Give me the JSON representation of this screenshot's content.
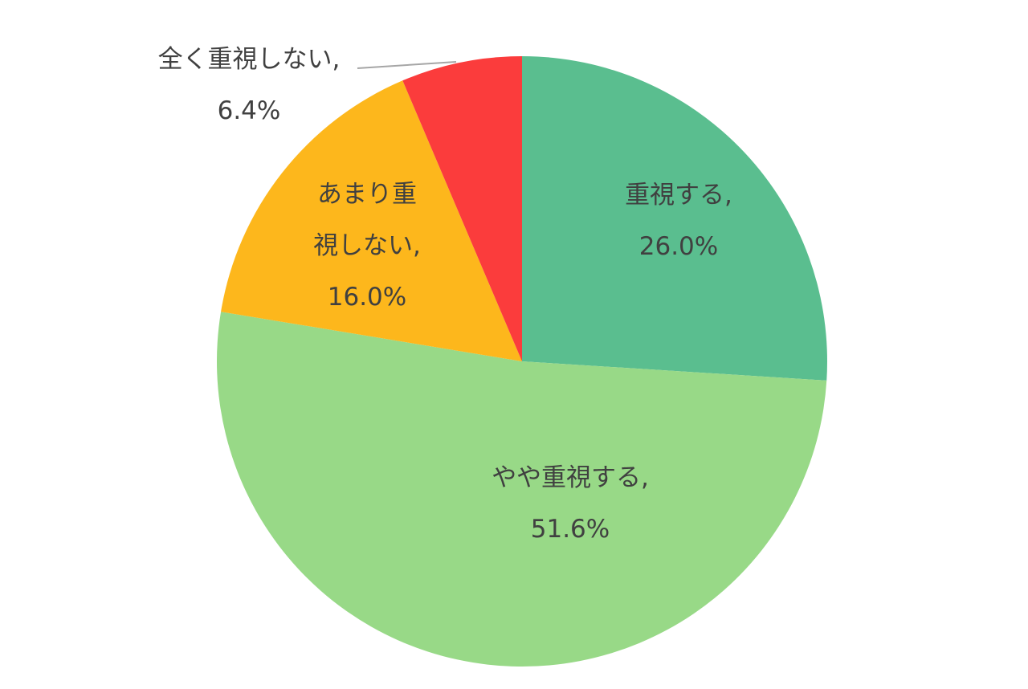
{
  "chart_data": {
    "type": "pie",
    "title": "",
    "start_angle_deg": 0,
    "direction": "clockwise",
    "slices": [
      {
        "name": "重視する",
        "value": 26.0,
        "label": "26.0%",
        "color": "#5ABE8F"
      },
      {
        "name": "やや重視する",
        "value": 51.6,
        "label": "51.6%",
        "color": "#98D987"
      },
      {
        "name": "あまり重視しない",
        "value": 16.0,
        "label": "16.0%",
        "color": "#FDB71C"
      },
      {
        "name": "全く重視しない",
        "value": 6.4,
        "label": "6.4%",
        "color": "#FB3C3C"
      }
    ],
    "data_labels": [
      {
        "lines": [
          "重視する,",
          "26.0%"
        ]
      },
      {
        "lines": [
          "やや重視する,",
          "51.6%"
        ]
      },
      {
        "lines": [
          "あまり重",
          "視しない,",
          "16.0%"
        ]
      },
      {
        "lines": [
          "全く重視しない,",
          "6.4%"
        ]
      }
    ],
    "label_text_color": "#404040",
    "leader_line_color": "#A6A6A6",
    "legend": "none"
  }
}
